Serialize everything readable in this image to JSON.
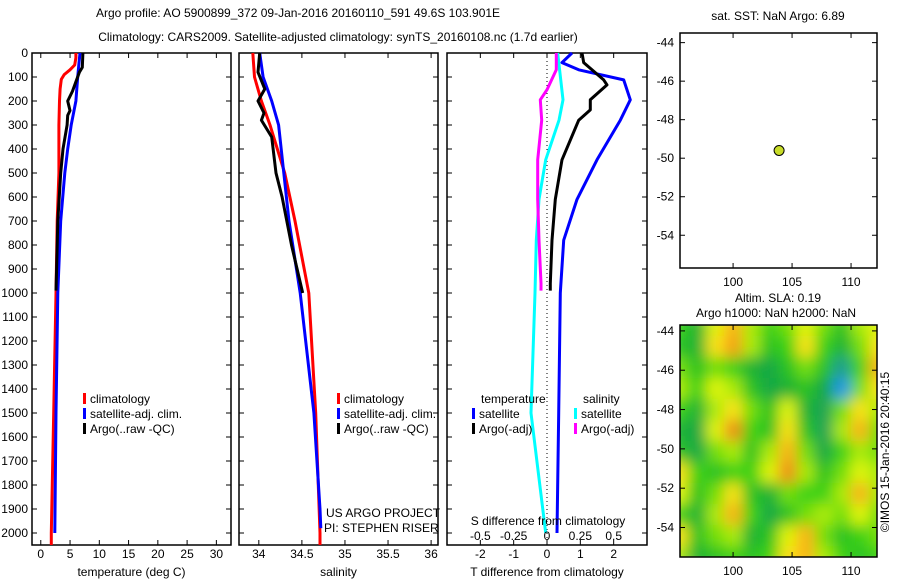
{
  "title_line1": "Argo profile: AO 5900899_372 09-Jan-2016 20160110_591 49.6S 103.901E",
  "title_line2": "Climatology: CARS2009. Satellite-adjusted climatology: synTS_20160108.nc (1.7d earlier)",
  "credit": "©IMOS 15-Jan-2016 20:40:15",
  "colors": {
    "climatology": "#ff0000",
    "satellite": "#0000ff",
    "argo": "#000000",
    "sal_satellite": "#00ffff",
    "sal_argo": "#ff00ff"
  },
  "chart_data": [
    {
      "type": "line",
      "id": "temperature",
      "xlabel": "temperature (deg C)",
      "ylabel": "",
      "xlim": [
        -1.5,
        32.5
      ],
      "ylim": [
        2050,
        0
      ],
      "xticks": [
        "0",
        "5",
        "10",
        "15",
        "20",
        "25",
        "30"
      ],
      "xtick_values": [
        0,
        5,
        10,
        15,
        20,
        25,
        30
      ],
      "yticks": [
        "0",
        "100",
        "200",
        "300",
        "400",
        "500",
        "600",
        "700",
        "800",
        "900",
        "1000",
        "1100",
        "1200",
        "1300",
        "1400",
        "1500",
        "1600",
        "1700",
        "1800",
        "1900",
        "2000"
      ],
      "legend": [
        "climatology",
        "satellite-adj. clim.",
        "Argo(..raw -QC)"
      ],
      "series": [
        {
          "name": "climatology",
          "color": "#ff0000",
          "depth": [
            0,
            20,
            50,
            70,
            90,
            110,
            150,
            200,
            300,
            500,
            700,
            1000,
            1500,
            2000,
            2050
          ],
          "values": [
            6.0,
            6.0,
            5.8,
            5.0,
            4.0,
            3.5,
            3.3,
            3.2,
            3.1,
            3.1,
            2.8,
            2.6,
            2.2,
            1.8,
            1.8
          ]
        },
        {
          "name": "satellite-adj. clim.",
          "color": "#0000ff",
          "depth": [
            0,
            50,
            100,
            200,
            300,
            400,
            500,
            700,
            1000,
            1500,
            2000
          ],
          "values": [
            6.7,
            6.5,
            6.3,
            6.0,
            5.2,
            4.6,
            4.1,
            3.4,
            2.9,
            2.6,
            2.4
          ]
        },
        {
          "name": "Argo(..raw -QC)",
          "color": "#000000",
          "depth": [
            0,
            60,
            80,
            120,
            160,
            200,
            240,
            260,
            300,
            400,
            500,
            700,
            900,
            990
          ],
          "values": [
            7.2,
            7.1,
            6.6,
            6.0,
            5.4,
            4.6,
            5.0,
            4.6,
            4.5,
            3.8,
            3.4,
            2.9,
            2.7,
            2.6
          ]
        }
      ]
    },
    {
      "type": "line",
      "id": "salinity",
      "xlabel": "salinity",
      "xlim": [
        33.77,
        36.08
      ],
      "ylim": [
        2050,
        0
      ],
      "xticks": [
        "34",
        "34.5",
        "35",
        "35.5",
        "36"
      ],
      "xtick_values": [
        34,
        34.5,
        35,
        35.5,
        36
      ],
      "legend": [
        "climatology",
        "satellite-adj. clim.",
        "Argo(..raw -QC)"
      ],
      "annotation": [
        "US ARGO PROJECT",
        "PI: STEPHEN RISER"
      ],
      "series": [
        {
          "name": "climatology",
          "color": "#ff0000",
          "depth": [
            0,
            100,
            200,
            300,
            500,
            700,
            1000,
            1500,
            2000,
            2050
          ],
          "values": [
            33.93,
            33.95,
            34.03,
            34.13,
            34.3,
            34.42,
            34.58,
            34.66,
            34.71,
            34.71
          ]
        },
        {
          "name": "satellite-adj. clim.",
          "color": "#0000ff",
          "depth": [
            0,
            100,
            200,
            300,
            500,
            700,
            1000,
            1500,
            1900,
            1980
          ],
          "values": [
            34.01,
            34.05,
            34.15,
            34.23,
            34.29,
            34.35,
            34.48,
            34.64,
            34.71,
            34.72
          ]
        },
        {
          "name": "Argo(..raw -QC)",
          "color": "#000000",
          "depth": [
            0,
            80,
            150,
            200,
            250,
            280,
            350,
            500,
            600,
            800,
            1000
          ],
          "values": [
            34.01,
            33.99,
            34.07,
            33.99,
            34.06,
            34.03,
            34.15,
            34.2,
            34.27,
            34.38,
            34.51
          ]
        }
      ]
    },
    {
      "type": "line",
      "id": "difference",
      "xlabel": "T difference from climatology",
      "x2label": "S difference from climatology",
      "xlim": [
        -3,
        3
      ],
      "x2lim": [
        -0.75,
        0.75
      ],
      "ylim": [
        2050,
        0
      ],
      "xticks": [
        "-2",
        "-1",
        "0",
        "1",
        "2"
      ],
      "xtick_values": [
        -2,
        -1,
        0,
        1,
        2
      ],
      "x2ticks": [
        "-0.5",
        "-0.25",
        "0",
        "0.25",
        "0.5"
      ],
      "x2tick_values": [
        -0.5,
        -0.25,
        0,
        0.25,
        0.5
      ],
      "legend_temperature": {
        "title": "temperature",
        "items": [
          "satellite",
          "Argo(-adj)"
        ]
      },
      "legend_salinity": {
        "title": "salinity",
        "items": [
          "satellite",
          "Argo(-adj)"
        ]
      },
      "series": [
        {
          "name": "T satellite",
          "axis": "T",
          "color": "#0000ff",
          "depth": [
            0,
            40,
            70,
            112,
            195,
            280,
            445,
            610,
            780,
            1000,
            1500,
            2000
          ],
          "values": [
            0.75,
            0.45,
            0.95,
            2.3,
            2.5,
            2.2,
            1.5,
            0.9,
            0.5,
            0.4,
            0.35,
            0.3
          ]
        },
        {
          "name": "T Argo(-adj)",
          "axis": "T",
          "color": "#000000",
          "depth": [
            0,
            40,
            112,
            133,
            195,
            237,
            280,
            445,
            610,
            780,
            960,
            990
          ],
          "values": [
            1.05,
            1.1,
            1.7,
            1.8,
            1.3,
            1.3,
            0.95,
            0.45,
            0.25,
            0.15,
            0.1,
            0.1
          ]
        },
        {
          "name": "S satellite",
          "axis": "S",
          "color": "#00ffff",
          "depth": [
            0,
            195,
            280,
            445,
            610,
            780,
            1000,
            1500,
            2000
          ],
          "values": [
            0.08,
            0.12,
            0.09,
            -0.01,
            -0.06,
            -0.08,
            -0.09,
            -0.12,
            -0.01
          ]
        },
        {
          "name": "S Argo(-adj)",
          "axis": "S",
          "color": "#ff00ff",
          "depth": [
            0,
            70,
            153,
            195,
            280,
            445,
            610,
            780,
            960,
            990
          ],
          "values": [
            0.07,
            0.07,
            0.0,
            -0.05,
            -0.04,
            -0.07,
            -0.07,
            -0.06,
            -0.045,
            -0.045
          ]
        }
      ]
    },
    {
      "type": "scatter",
      "id": "sst-map",
      "title": "sat. SST: NaN Argo: 6.89",
      "xlim": [
        95.5,
        112.2
      ],
      "ylim": [
        -55.7,
        -43.5
      ],
      "xticks": [
        "100",
        "105",
        "110"
      ],
      "xtick_values": [
        100,
        105,
        110
      ],
      "yticks": [
        "-44",
        "-46",
        "-48",
        "-50",
        "-52",
        "-54"
      ],
      "ytick_values": [
        -44,
        -46,
        -48,
        -50,
        -52,
        -54
      ],
      "points": [
        {
          "lon": 103.9,
          "lat": -49.6,
          "color": "#c8dc28"
        }
      ]
    },
    {
      "type": "heatmap",
      "id": "sla-map",
      "title": [
        "Altim. SLA: 0.19",
        "Argo h1000: NaN h2000: NaN"
      ],
      "xlim": [
        95.5,
        112.2
      ],
      "ylim": [
        -55.5,
        -43.7
      ],
      "xticks": [
        "100",
        "105",
        "110"
      ],
      "xtick_values": [
        100,
        105,
        110
      ],
      "yticks": [
        "-44",
        "-46",
        "-48",
        "-50",
        "-52",
        "-54"
      ],
      "ytick_values": [
        -44,
        -46,
        -48,
        -50,
        -52,
        -54
      ],
      "grid": [
        [
          0.4,
          0.2,
          0.7,
          0.9,
          0.6,
          0.4,
          0.5,
          0.7,
          0.5,
          0.3,
          0.6,
          0.7
        ],
        [
          0.3,
          0.2,
          0.8,
          0.95,
          0.6,
          0.3,
          0.4,
          0.8,
          0.4,
          0.2,
          0.5,
          0.8
        ],
        [
          0.5,
          0.3,
          0.5,
          0.4,
          0.2,
          0.1,
          0.3,
          0.5,
          0.3,
          -0.2,
          0.4,
          0.9
        ],
        [
          0.6,
          0.4,
          0.7,
          0.6,
          0.3,
          0.1,
          0.2,
          0.3,
          0.1,
          -0.4,
          0.5,
          0.8
        ],
        [
          0.4,
          0.2,
          0.6,
          0.8,
          0.5,
          0.3,
          0.7,
          0.2,
          0.0,
          0.5,
          0.8,
          0.6
        ],
        [
          0.2,
          0.1,
          0.7,
          1.0,
          0.4,
          0.3,
          0.8,
          0.3,
          0.0,
          0.6,
          0.9,
          0.5
        ],
        [
          0.3,
          0.1,
          0.5,
          0.6,
          0.3,
          0.6,
          0.9,
          0.5,
          0.1,
          0.4,
          0.6,
          0.5
        ],
        [
          0.8,
          0.4,
          0.3,
          0.4,
          0.4,
          0.7,
          1.0,
          0.6,
          0.3,
          0.5,
          0.7,
          0.6
        ],
        [
          0.7,
          0.3,
          0.5,
          0.8,
          0.3,
          0.2,
          0.5,
          0.4,
          0.4,
          0.6,
          0.9,
          0.6
        ],
        [
          0.4,
          0.2,
          0.6,
          0.9,
          0.4,
          0.1,
          0.3,
          0.5,
          0.6,
          0.5,
          0.7,
          0.5
        ],
        [
          0.8,
          0.3,
          0.5,
          0.6,
          0.2,
          0.3,
          0.7,
          0.9,
          0.5,
          0.3,
          0.4,
          0.5
        ],
        [
          0.6,
          0.2,
          0.3,
          0.4,
          0.3,
          0.4,
          0.8,
          0.9,
          0.6,
          0.4,
          0.3,
          0.4
        ]
      ]
    }
  ]
}
